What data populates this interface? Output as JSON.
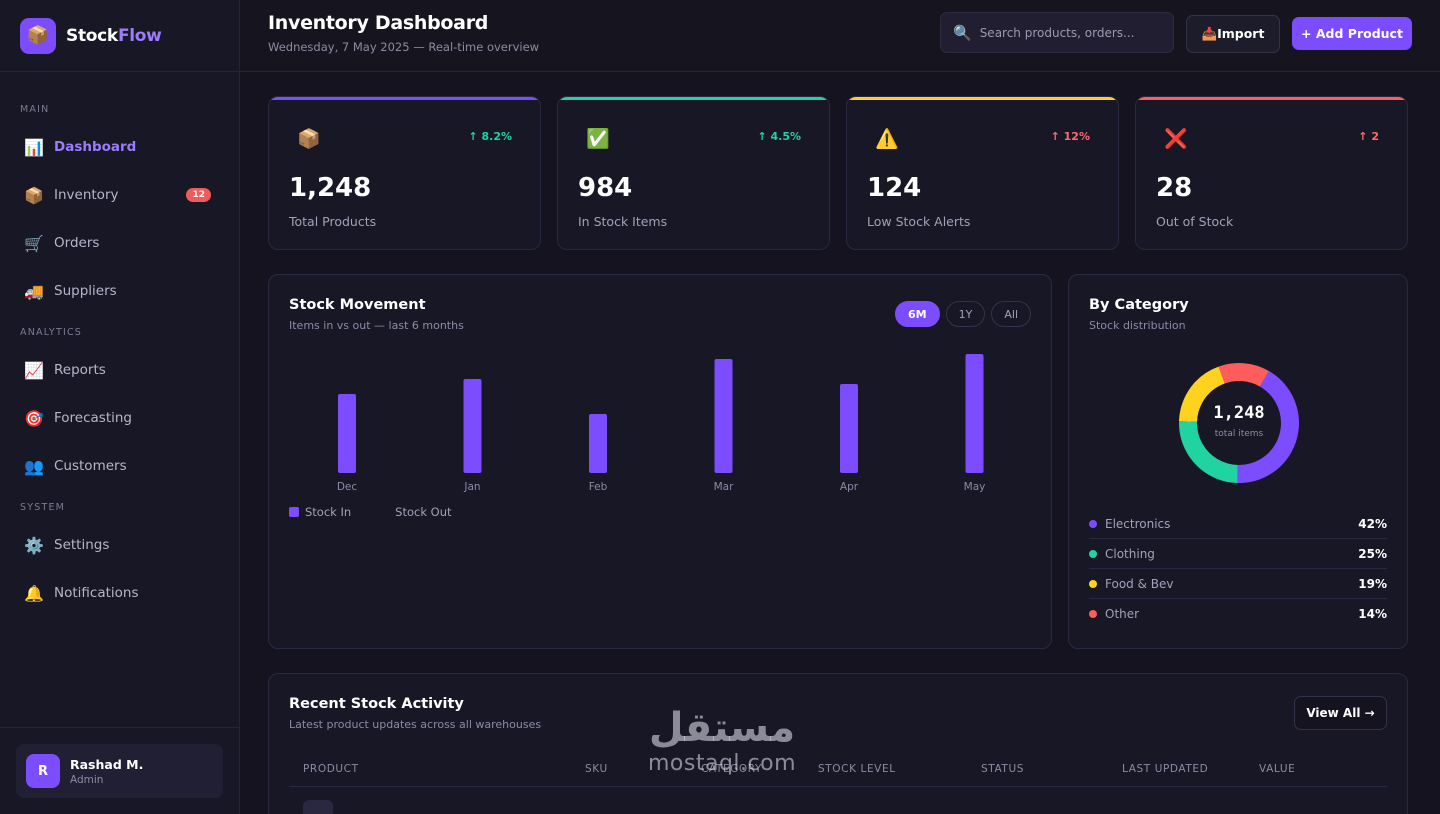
{
  "brand": {
    "logo_icon": "📦",
    "name_part1": "Stock",
    "name_part2": "Flow",
    "accent": "#7c4dff"
  },
  "sidebar": {
    "sections": [
      {
        "title": "MAIN",
        "items": [
          {
            "icon": "📊",
            "label": "Dashboard",
            "active": true
          },
          {
            "icon": "📦",
            "label": "Inventory",
            "badge": "12"
          },
          {
            "icon": "🛒",
            "label": "Orders"
          },
          {
            "icon": "🚚",
            "label": "Suppliers"
          }
        ]
      },
      {
        "title": "ANALYTICS",
        "items": [
          {
            "icon": "📈",
            "label": "Reports"
          },
          {
            "icon": "🎯",
            "label": "Forecasting"
          },
          {
            "icon": "👥",
            "label": "Customers"
          }
        ]
      },
      {
        "title": "SYSTEM",
        "items": [
          {
            "icon": "⚙️",
            "label": "Settings"
          },
          {
            "icon": "🔔",
            "label": "Notifications"
          }
        ]
      }
    ],
    "user": {
      "initial": "R",
      "name": "Rashad M.",
      "role": "Admin"
    }
  },
  "header": {
    "title": "Inventory Dashboard",
    "subtitle": "Wednesday, 7 May 2025 — Real-time overview",
    "search_placeholder": "Search products, orders...",
    "import_label": "📥Import",
    "add_label": "+ Add Product"
  },
  "stats": [
    {
      "icon": "📦",
      "trend": "↑ 8.2%",
      "value": "1,248",
      "label": "Total Products",
      "color": "#7c4dff",
      "trend_color": "#21d3a0"
    },
    {
      "icon": "✅",
      "trend": "↑ 4.5%",
      "value": "984",
      "label": "In Stock Items",
      "color": "#21d3a0",
      "trend_color": "#21d3a0"
    },
    {
      "icon": "⚠️",
      "trend": "↑ 12%",
      "value": "124",
      "label": "Low Stock Alerts",
      "color": "#ffd21f",
      "trend_color": "#ff6b6b"
    },
    {
      "icon": "❌",
      "trend": "↑ 2",
      "value": "28",
      "label": "Out of Stock",
      "color": "#ff5c5c",
      "trend_color": "#ff6b6b"
    }
  ],
  "movement": {
    "title": "Stock Movement",
    "subtitle": "Items in vs out — last 6 months",
    "ranges": [
      "6M",
      "1Y",
      "All"
    ],
    "active_range": "6M",
    "legend": [
      {
        "label": "Stock In",
        "color": "#7c4dff"
      },
      {
        "label": "Stock Out",
        "color": "transparent"
      }
    ]
  },
  "chart_data": {
    "type": "bar",
    "categories": [
      "Dec",
      "Jan",
      "Feb",
      "Mar",
      "Apr",
      "May"
    ],
    "series": [
      {
        "name": "Stock In",
        "values": [
          79,
          94,
          59,
          114,
          89,
          119
        ],
        "color": "#7c4dff"
      },
      {
        "name": "Stock Out",
        "values": [
          0,
          0,
          0,
          0,
          0,
          0
        ],
        "color": "transparent"
      }
    ],
    "ylim": [
      0,
      120
    ],
    "grid": false,
    "legend": "bottom-left"
  },
  "category": {
    "title": "By Category",
    "subtitle": "Stock distribution",
    "total_value": "1,248",
    "total_label": "total items",
    "items": [
      {
        "name": "Electronics",
        "pct": "42%",
        "value": 42,
        "color": "#7c4dff"
      },
      {
        "name": "Clothing",
        "pct": "25%",
        "value": 25,
        "color": "#21d3a0"
      },
      {
        "name": "Food & Bev",
        "pct": "19%",
        "value": 19,
        "color": "#ffd21f"
      },
      {
        "name": "Other",
        "pct": "14%",
        "value": 14,
        "color": "#ff5c5c"
      }
    ]
  },
  "activity": {
    "title": "Recent Stock Activity",
    "subtitle": "Latest product updates across all warehouses",
    "view_all": "View All →",
    "columns": [
      "PRODUCT",
      "SKU",
      "CATEGORY",
      "STOCK LEVEL",
      "STATUS",
      "LAST UPDATED",
      "VALUE"
    ]
  },
  "watermark": {
    "arabic": "مستقل",
    "latin": "mostaql.com"
  }
}
